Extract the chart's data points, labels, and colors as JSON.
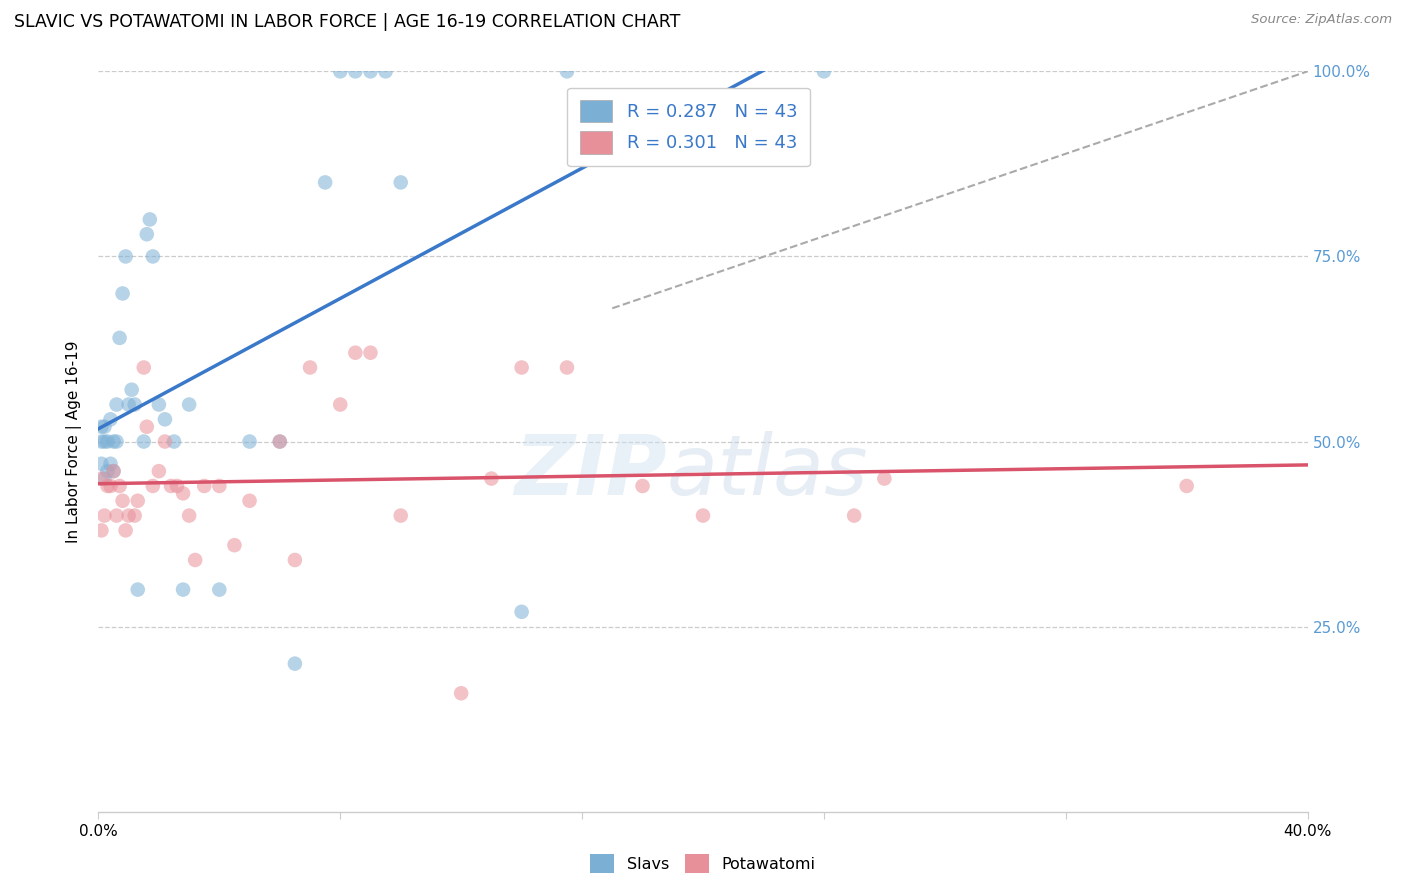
{
  "title": "SLAVIC VS POTAWATOMI IN LABOR FORCE | AGE 16-19 CORRELATION CHART",
  "source": "Source: ZipAtlas.com",
  "ylabel": "In Labor Force | Age 16-19",
  "xlim": [
    0.0,
    0.4
  ],
  "ylim": [
    0.0,
    1.0
  ],
  "slavs_R": 0.287,
  "slavs_N": 43,
  "potawatomi_R": 0.301,
  "potawatomi_N": 43,
  "slavs_color": "#7bafd4",
  "potawatomi_color": "#e8909a",
  "slavs_line_color": "#3a78c9",
  "potawatomi_line_color": "#d9536a",
  "legend_text_color": "#3a78c9",
  "right_tick_color": "#5a9ad4",
  "slavs_x": [
    0.001,
    0.001,
    0.001,
    0.002,
    0.002,
    0.002,
    0.003,
    0.003,
    0.004,
    0.004,
    0.005,
    0.005,
    0.006,
    0.006,
    0.007,
    0.008,
    0.009,
    0.01,
    0.011,
    0.012,
    0.013,
    0.015,
    0.016,
    0.017,
    0.018,
    0.02,
    0.022,
    0.025,
    0.028,
    0.03,
    0.04,
    0.05,
    0.06,
    0.065,
    0.075,
    0.08,
    0.085,
    0.09,
    0.095,
    0.1,
    0.14,
    0.155,
    0.24
  ],
  "slavs_y": [
    0.47,
    0.5,
    0.52,
    0.45,
    0.5,
    0.52,
    0.46,
    0.5,
    0.47,
    0.53,
    0.46,
    0.5,
    0.5,
    0.55,
    0.64,
    0.7,
    0.75,
    0.55,
    0.57,
    0.55,
    0.3,
    0.5,
    0.78,
    0.8,
    0.75,
    0.55,
    0.53,
    0.5,
    0.3,
    0.55,
    0.3,
    0.5,
    0.5,
    0.2,
    0.85,
    1.0,
    1.0,
    1.0,
    1.0,
    0.85,
    0.27,
    1.0,
    1.0
  ],
  "potawatomi_x": [
    0.001,
    0.001,
    0.002,
    0.003,
    0.004,
    0.005,
    0.006,
    0.007,
    0.008,
    0.009,
    0.01,
    0.012,
    0.013,
    0.015,
    0.016,
    0.018,
    0.02,
    0.022,
    0.024,
    0.026,
    0.028,
    0.03,
    0.032,
    0.035,
    0.04,
    0.045,
    0.05,
    0.06,
    0.065,
    0.07,
    0.08,
    0.085,
    0.09,
    0.1,
    0.12,
    0.13,
    0.14,
    0.155,
    0.18,
    0.2,
    0.25,
    0.26,
    0.36
  ],
  "potawatomi_y": [
    0.45,
    0.38,
    0.4,
    0.44,
    0.44,
    0.46,
    0.4,
    0.44,
    0.42,
    0.38,
    0.4,
    0.4,
    0.42,
    0.6,
    0.52,
    0.44,
    0.46,
    0.5,
    0.44,
    0.44,
    0.43,
    0.4,
    0.34,
    0.44,
    0.44,
    0.36,
    0.42,
    0.5,
    0.34,
    0.6,
    0.55,
    0.62,
    0.62,
    0.4,
    0.16,
    0.45,
    0.6,
    0.6,
    0.44,
    0.4,
    0.4,
    0.45,
    0.44
  ],
  "dash_line_x": [
    0.17,
    0.4
  ],
  "dash_line_y": [
    0.68,
    1.0
  ],
  "watermark_text": "ZIP",
  "watermark_text2": "atlas",
  "background_color": "#ffffff",
  "grid_color": "#cccccc"
}
